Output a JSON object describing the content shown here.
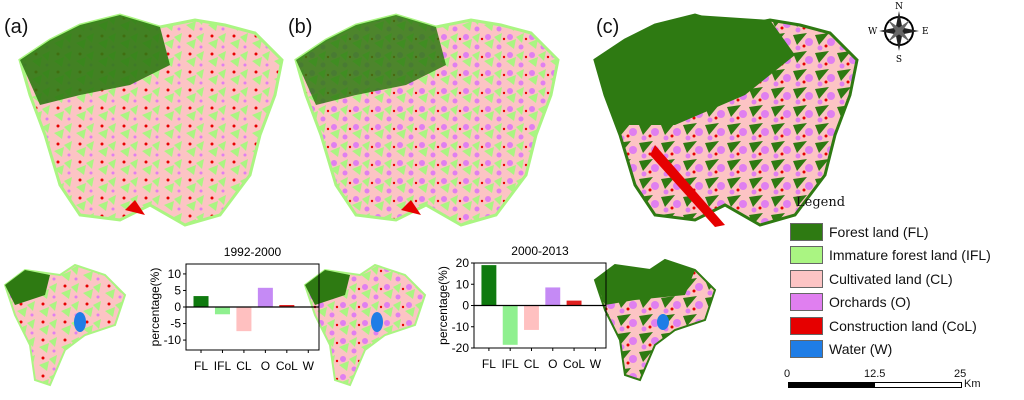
{
  "panels": {
    "a": "(a)",
    "b": "(b)",
    "c": "(c)"
  },
  "compass": {
    "n": "N",
    "s": "S",
    "e": "E",
    "w": "W"
  },
  "legend": {
    "title": "Legend",
    "items": [
      {
        "label": "Forest land (FL)",
        "color": "#2e7a12"
      },
      {
        "label": "Immature forest land (IFL)",
        "color": "#aaf582"
      },
      {
        "label": "Cultivated land (CL)",
        "color": "#fcc4c4"
      },
      {
        "label": "Orchards (O)",
        "color": "#e07ff0"
      },
      {
        "label": "Construction land (CoL)",
        "color": "#e60000"
      },
      {
        "label": "Water (W)",
        "color": "#1f7de6"
      }
    ]
  },
  "scalebar": {
    "t0": "0",
    "t1": "12.5",
    "t2": "25",
    "unit": "Km"
  },
  "chart_data": [
    {
      "type": "bar",
      "title": "1992-2000",
      "ylabel": "percentage(%)",
      "categories": [
        "FL",
        "IFL",
        "CL",
        "O",
        "CoL",
        "W"
      ],
      "values": [
        3.3,
        -2.2,
        -7.3,
        5.8,
        0.6,
        0
      ],
      "ylim": [
        -13,
        13
      ],
      "yticks": [
        10,
        5,
        0,
        -5,
        -10
      ],
      "colors": [
        "#0f7a0f",
        "#8ff08f",
        "#ffc0c0",
        "#c58af5",
        "#e02020",
        "#1f7de6"
      ]
    },
    {
      "type": "bar",
      "title": "2000-2013",
      "ylabel": "percentage(%)",
      "categories": [
        "FL",
        "IFL",
        "CL",
        "O",
        "CoL",
        "W"
      ],
      "values": [
        19,
        -18.5,
        -11.5,
        8.5,
        2.3,
        0
      ],
      "ylim": [
        -20,
        20
      ],
      "yticks": [
        20,
        10,
        0,
        -10,
        -20
      ],
      "colors": [
        "#0f7a0f",
        "#8ff08f",
        "#ffc0c0",
        "#c58af5",
        "#e02020",
        "#1f7de6"
      ]
    }
  ]
}
